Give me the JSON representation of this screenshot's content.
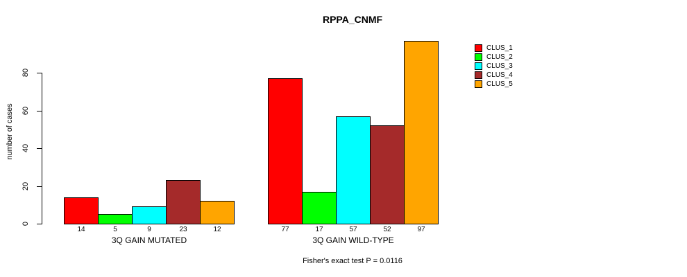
{
  "title": "RPPA_CNMF",
  "footer": "Fisher's exact test P = 0.0116",
  "chart_data": {
    "type": "bar",
    "title": "RPPA_CNMF",
    "xlabel": "",
    "ylabel": "number of cases",
    "ylim": [
      0,
      97
    ],
    "y_ticks": [
      0,
      20,
      40,
      60,
      80
    ],
    "grid": false,
    "legend_position": "right",
    "bar_value_labels_shown": true,
    "categories": [
      "3Q GAIN MUTATED",
      "3Q GAIN WILD-TYPE"
    ],
    "series": [
      {
        "name": "CLUS_1",
        "color": "#FF0000",
        "values": [
          14,
          77
        ]
      },
      {
        "name": "CLUS_2",
        "color": "#00FF00",
        "values": [
          5,
          17
        ]
      },
      {
        "name": "CLUS_3",
        "color": "#00FFFF",
        "values": [
          9,
          57
        ]
      },
      {
        "name": "CLUS_4",
        "color": "#A52A2A",
        "values": [
          23,
          52
        ]
      },
      {
        "name": "CLUS_5",
        "color": "#FFA500",
        "values": [
          12,
          97
        ]
      }
    ],
    "annotation": "Fisher's exact test P = 0.0116"
  }
}
